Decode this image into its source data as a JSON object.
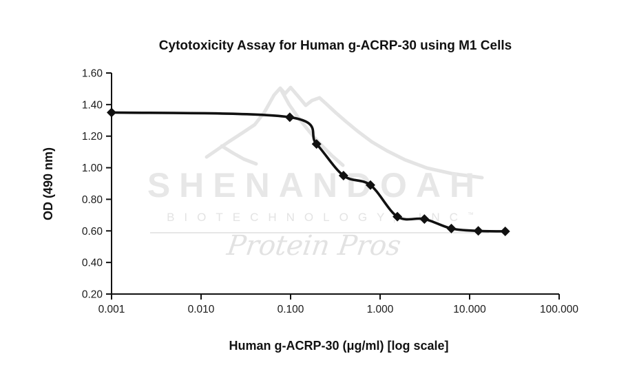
{
  "page": {
    "background": "#ffffff"
  },
  "watermark": {
    "brand": "SHENANDOAH",
    "subtitle": "BIOTECHNOLOGY, INC",
    "trademark": "™",
    "tagline": "Protein Pros",
    "color": "#e7e7e7"
  },
  "chart_data": {
    "type": "line",
    "title": "Cytotoxicity Assay for Human g-ACRP-30 using M1 Cells",
    "xlabel": "Human g-ACRP-30 (μg/ml) [log scale]",
    "ylabel": "OD (490 nm)",
    "x_scale": "log",
    "xlim": [
      0.001,
      100
    ],
    "ylim": [
      0.2,
      1.6
    ],
    "grid": false,
    "legend": "none",
    "x_ticks": [
      0.001,
      0.01,
      0.1,
      1,
      10,
      100
    ],
    "x_tick_labels": [
      "0.001",
      "0.010",
      "0.100",
      "1.000",
      "10.000",
      "100.000"
    ],
    "y_ticks": [
      0.2,
      0.4,
      0.6,
      0.8,
      1.0,
      1.2,
      1.4,
      1.6
    ],
    "y_tick_labels": [
      "0.20",
      "0.40",
      "0.60",
      "0.80",
      "1.00",
      "1.20",
      "1.40",
      "1.60"
    ],
    "axis_color": "#111111",
    "series": [
      {
        "name": "OD 490 nm",
        "marker": "diamond",
        "color": "#111111",
        "smooth": true,
        "x": [
          0.001,
          0.098,
          0.195,
          0.39,
          0.78,
          1.56,
          3.125,
          6.25,
          12.5,
          25
        ],
        "y": [
          1.35,
          1.32,
          1.15,
          0.95,
          0.89,
          0.69,
          0.675,
          0.615,
          0.6,
          0.597
        ]
      }
    ]
  }
}
